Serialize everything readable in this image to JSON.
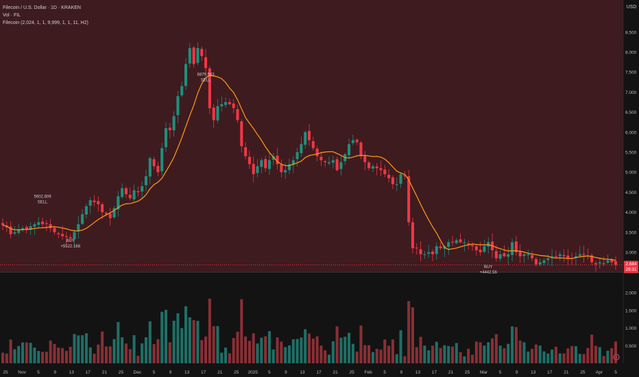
{
  "header": {
    "title": "Filecoin / U.S. Dollar · 1D · KRAKEN",
    "volume_label": "Vol · FIL",
    "indicator_label": "Filecoin (2,024, 1, 1, 9,999, 1, 1, 11, H2)",
    "currency": "USD"
  },
  "colors": {
    "background": "#131313",
    "price_zone": "#3e1b1f",
    "up": "#1f8f7c",
    "down": "#f23645",
    "vol_up": "#1f6f66",
    "vol_down": "#8a2f35",
    "ma": "#f7931a",
    "last_price_bg": "#f23645"
  },
  "last_price": {
    "value": "2.684",
    "countdown": "29:31"
  },
  "chart_data": {
    "type": "candlestick",
    "price_ticks": [
      "8.500",
      "8.000",
      "7.500",
      "7.000",
      "6.500",
      "6.000",
      "5.500",
      "5.000",
      "4.500",
      "4.000",
      "3.500",
      "3.000"
    ],
    "volume_ticks": [
      "2.000",
      "1.500",
      "1.000",
      "0.500"
    ],
    "x_ticks": [
      "25",
      "Nov",
      "5",
      "9",
      "13",
      "17",
      "21",
      "25",
      "Dec",
      "5",
      "9",
      "13",
      "17",
      "21",
      "25",
      "2025",
      "5",
      "9",
      "13",
      "17",
      "21",
      "25",
      "Feb",
      "5",
      "9",
      "13",
      "17",
      "21",
      "25",
      "Mar",
      "5",
      "9",
      "13",
      "17",
      "21",
      "25",
      "Apr",
      "5"
    ],
    "close": [
      3.68,
      3.62,
      3.45,
      3.5,
      3.55,
      3.6,
      3.58,
      3.65,
      3.7,
      3.75,
      3.7,
      3.72,
      3.6,
      3.5,
      3.45,
      3.4,
      3.38,
      3.35,
      3.5,
      3.7,
      3.95,
      4.15,
      4.3,
      4.25,
      4.2,
      4.0,
      3.95,
      3.85,
      4.1,
      4.4,
      4.6,
      4.45,
      4.35,
      4.55,
      4.5,
      4.65,
      4.9,
      5.35,
      5.15,
      5.0,
      5.6,
      6.1,
      6.05,
      6.4,
      6.9,
      7.15,
      7.7,
      8.1,
      7.7,
      8.1,
      7.9,
      7.6,
      6.6,
      6.3,
      6.65,
      6.7,
      6.75,
      6.7,
      6.6,
      6.3,
      5.65,
      5.4,
      5.2,
      4.95,
      5.15,
      5.3,
      5.1,
      5.3,
      5.4,
      5.2,
      5.0,
      5.05,
      5.2,
      5.3,
      5.5,
      5.7,
      6.0,
      5.8,
      5.6,
      5.4,
      5.3,
      5.25,
      5.25,
      5.3,
      5.05,
      5.25,
      5.45,
      5.7,
      5.8,
      5.75,
      5.4,
      5.25,
      5.1,
      5.15,
      5.1,
      5.05,
      4.95,
      4.85,
      4.7,
      4.7,
      4.95,
      4.9,
      3.75,
      3.1,
      3.1,
      2.95,
      2.95,
      3.0,
      2.95,
      3.15,
      3.1,
      3.15,
      3.25,
      3.25,
      3.3,
      3.25,
      3.25,
      3.2,
      3.15,
      3.05,
      3.0,
      3.15,
      3.25,
      3.05,
      2.85,
      2.95,
      2.9,
      2.95,
      3.25,
      3.0,
      2.9,
      2.95,
      2.95,
      2.85,
      2.7,
      2.75,
      2.8,
      2.85,
      2.9,
      2.9,
      2.95,
      2.9,
      2.85,
      2.85,
      2.9,
      2.95,
      2.95,
      2.9,
      2.75,
      2.7,
      2.75,
      2.72,
      2.8,
      2.75,
      2.684
    ],
    "ma_period": 10,
    "signals": [
      {
        "text": "BUY",
        "amount": "+5522.168",
        "price": 3.5
      },
      {
        "text": "SELL",
        "amount": "5602.809",
        "price": 3.95
      },
      {
        "text": "SELL",
        "amount": "6879.563",
        "price": 7.0
      },
      {
        "text": "BUY",
        "amount": "+4442.56",
        "price": 2.85
      }
    ],
    "price_range": [
      2.5,
      8.7
    ],
    "volume_range": [
      0,
      2.35
    ],
    "grid": false,
    "legend": "none"
  }
}
